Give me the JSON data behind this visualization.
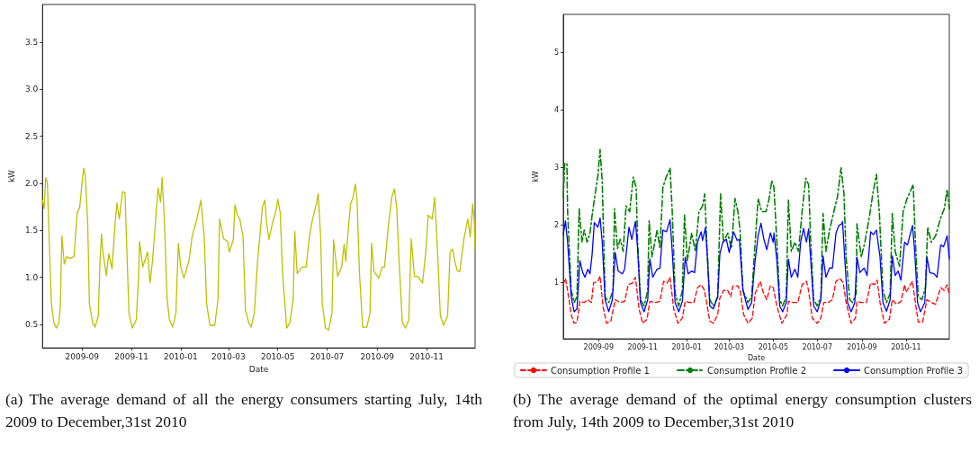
{
  "chart_data": [
    {
      "type": "line",
      "xlabel": "Date",
      "ylabel": "kW",
      "annotations": [
        "(a) The average demand of all the energy consumers starting July, 14th 2009 to December,31st 2010"
      ],
      "xlim": [
        "2009-07-14",
        "2010-12-31"
      ],
      "xticks": [
        "2009-09",
        "2009-11",
        "2010-01",
        "2010-03",
        "2010-05",
        "2010-07",
        "2010-09",
        "2010-11"
      ],
      "ylim": [
        0.25,
        3.9
      ],
      "yticks": [
        0.5,
        {
          "value": 1,
          "label": "1.0"
        },
        1.5,
        {
          "value": 2,
          "label": "2.0"
        },
        2.5,
        {
          "value": 3,
          "label": "3.0"
        },
        3.5
      ],
      "grid": false,
      "legend": false,
      "marker": "none",
      "series": [
        {
          "color": "#bfbf00",
          "line_style": "solid",
          "x": [
            "2009-07-14",
            "2009-07-16",
            "2009-07-18",
            "2009-07-20",
            "2009-07-22",
            "2009-07-25",
            "2009-07-28",
            "2009-07-31",
            "2009-08-03",
            "2009-08-05",
            "2009-08-07",
            "2009-08-10",
            "2009-08-13",
            "2009-08-17",
            "2009-08-22",
            "2009-08-26",
            "2009-08-29",
            "2009-09-01",
            "2009-09-03",
            "2009-09-05",
            "2009-09-08",
            "2009-09-10",
            "2009-09-14",
            "2009-09-17",
            "2009-09-21",
            "2009-09-23",
            "2009-09-25",
            "2009-09-27",
            "2009-10-01",
            "2009-10-04",
            "2009-10-08",
            "2009-10-12",
            "2009-10-14",
            "2009-10-17",
            "2009-10-21",
            "2009-10-24",
            "2009-10-27",
            "2009-10-29",
            "2009-11-02",
            "2009-11-07",
            "2009-11-10",
            "2009-11-11",
            "2009-11-15",
            "2009-11-21",
            "2009-11-24",
            "2009-11-27",
            "2009-12-01",
            "2009-12-04",
            "2009-12-07",
            "2009-12-09",
            "2009-12-12",
            "2009-12-15",
            "2009-12-18",
            "2009-12-22",
            "2009-12-26",
            "2009-12-29",
            "2010-01-01",
            "2010-01-05",
            "2010-01-11",
            "2010-01-15",
            "2010-01-20",
            "2010-01-26",
            "2010-01-30",
            "2010-02-02",
            "2010-02-06",
            "2010-02-12",
            "2010-02-16",
            "2010-02-18",
            "2010-02-23",
            "2010-02-28",
            "2010-03-02",
            "2010-03-07",
            "2010-03-09",
            "2010-03-12",
            "2010-03-15",
            "2010-03-19",
            "2010-03-22",
            "2010-03-26",
            "2010-03-29",
            "2010-04-02",
            "2010-04-06",
            "2010-04-09",
            "2010-04-12",
            "2010-04-15",
            "2010-04-17",
            "2010-04-20",
            "2010-04-24",
            "2010-04-29",
            "2010-05-01",
            "2010-05-04",
            "2010-05-07",
            "2010-05-12",
            "2010-05-16",
            "2010-05-20",
            "2010-05-22",
            "2010-05-25",
            "2010-05-31",
            "2010-06-05",
            "2010-06-09",
            "2010-06-13",
            "2010-06-18",
            "2010-06-20",
            "2010-06-23",
            "2010-06-25",
            "2010-06-29",
            "2010-07-03",
            "2010-07-07",
            "2010-07-09",
            "2010-07-14",
            "2010-07-19",
            "2010-07-22",
            "2010-07-24",
            "2010-07-27",
            "2010-07-30",
            "2010-08-02",
            "2010-08-05",
            "2010-08-07",
            "2010-08-10",
            "2010-08-14",
            "2010-08-19",
            "2010-08-23",
            "2010-08-25",
            "2010-08-28",
            "2010-09-03",
            "2010-09-07",
            "2010-09-10",
            "2010-09-15",
            "2010-09-19",
            "2010-09-22",
            "2010-09-25",
            "2010-09-28",
            "2010-10-02",
            "2010-10-06",
            "2010-10-10",
            "2010-10-13",
            "2010-10-17",
            "2010-10-21",
            "2010-10-27",
            "2010-10-31",
            "2010-11-03",
            "2010-11-08",
            "2010-11-11",
            "2010-11-15",
            "2010-11-18",
            "2010-11-22",
            "2010-11-27",
            "2010-11-30",
            "2010-12-03",
            "2010-12-06",
            "2010-12-09",
            "2010-12-12",
            "2010-12-17",
            "2010-12-22",
            "2010-12-25",
            "2010-12-28",
            "2010-12-30",
            "2010-12-31"
          ],
          "values": [
            1.82,
            1.73,
            2.06,
            2.01,
            1.49,
            0.72,
            0.52,
            0.46,
            0.51,
            0.68,
            1.44,
            1.14,
            1.22,
            1.2,
            1.22,
            1.69,
            1.74,
            2.01,
            2.16,
            2.08,
            1.56,
            0.72,
            0.52,
            0.47,
            0.59,
            1.14,
            1.46,
            1.25,
            1.02,
            1.25,
            1.09,
            1.59,
            1.79,
            1.62,
            1.91,
            1.9,
            1.11,
            0.62,
            0.46,
            0.55,
            1.04,
            1.38,
            1.11,
            1.27,
            0.94,
            1.17,
            1.62,
            1.95,
            1.8,
            2.06,
            1.56,
            0.78,
            0.55,
            0.47,
            0.62,
            1.36,
            1.11,
            0.99,
            1.17,
            1.43,
            1.59,
            1.82,
            1.43,
            0.72,
            0.49,
            0.49,
            0.76,
            1.62,
            1.41,
            1.38,
            1.27,
            1.4,
            1.77,
            1.66,
            1.62,
            1.43,
            0.65,
            0.52,
            0.47,
            0.62,
            1.17,
            1.46,
            1.75,
            1.82,
            1.59,
            1.4,
            1.56,
            1.72,
            1.83,
            1.69,
            1.04,
            0.46,
            0.52,
            0.76,
            1.49,
            1.04,
            1.11,
            1.11,
            1.43,
            1.62,
            1.79,
            1.89,
            1.43,
            0.72,
            0.46,
            0.44,
            0.62,
            1.4,
            1.01,
            1.11,
            1.35,
            1.17,
            1.49,
            1.78,
            1.85,
            1.99,
            1.82,
            1.04,
            0.47,
            0.47,
            0.62,
            1.36,
            1.06,
            0.99,
            1.11,
            1.11,
            1.57,
            1.85,
            1.94,
            1.75,
            1.17,
            0.52,
            0.46,
            0.55,
            1.41,
            1.01,
            1.01,
            0.94,
            1.27,
            1.66,
            1.62,
            1.85,
            1.2,
            0.59,
            0.49,
            0.59,
            1.27,
            1.3,
            1.17,
            1.07,
            1.06,
            1.4,
            1.62,
            1.43,
            1.78,
            1.59,
            1.3
          ]
        }
      ]
    },
    {
      "type": "line",
      "xlabel": "Date",
      "ylabel": "kW",
      "annotations": [
        "(b) The average demand of the optimal energy consumption clusters from July, 14th 2009 to December,31st 2010"
      ],
      "xlim": [
        "2009-07-14",
        "2010-12-31"
      ],
      "xticks": [
        "2009-09",
        "2009-11",
        "2010-01",
        "2010-03",
        "2010-05",
        "2010-07",
        "2010-09",
        "2010-11"
      ],
      "ylim": [
        0.02,
        5.66
      ],
      "yticks": [
        1,
        2,
        3,
        4,
        5
      ],
      "grid": false,
      "legend": "bottom",
      "marker": "none",
      "series": [
        {
          "name": "Consumption Profile 1",
          "color": "#ff0000",
          "line_style": "dashed",
          "x": [
            "2009-07-14",
            "2009-07-17",
            "2009-07-20",
            "2009-07-25",
            "2009-07-29",
            "2009-08-02",
            "2009-08-06",
            "2009-08-12",
            "2009-08-17",
            "2009-08-22",
            "2009-08-25",
            "2009-08-31",
            "2009-09-03",
            "2009-09-07",
            "2009-09-12",
            "2009-09-18",
            "2009-09-24",
            "2009-10-01",
            "2009-10-07",
            "2009-10-12",
            "2009-10-18",
            "2009-10-22",
            "2009-10-27",
            "2009-11-01",
            "2009-11-07",
            "2009-11-11",
            "2009-11-18",
            "2009-11-25",
            "2009-11-30",
            "2009-12-05",
            "2009-12-09",
            "2009-12-14",
            "2009-12-20",
            "2009-12-26",
            "2009-12-30",
            "2010-01-06",
            "2010-01-11",
            "2010-01-16",
            "2010-01-21",
            "2010-01-25",
            "2010-01-28",
            "2010-02-02",
            "2010-02-07",
            "2010-02-13",
            "2010-02-16",
            "2010-02-21",
            "2010-02-27",
            "2010-03-03",
            "2010-03-06",
            "2010-03-13",
            "2010-03-16",
            "2010-03-21",
            "2010-03-27",
            "2010-04-02",
            "2010-04-06",
            "2010-04-13",
            "2010-04-17",
            "2010-04-22",
            "2010-04-27",
            "2010-05-01",
            "2010-05-06",
            "2010-05-13",
            "2010-05-20",
            "2010-05-22",
            "2010-05-29",
            "2010-06-04",
            "2010-06-10",
            "2010-06-16",
            "2010-06-19",
            "2010-06-24",
            "2010-07-01",
            "2010-07-06",
            "2010-07-10",
            "2010-07-16",
            "2010-07-22",
            "2010-07-27",
            "2010-08-01",
            "2010-08-06",
            "2010-08-10",
            "2010-08-17",
            "2010-08-23",
            "2010-08-25",
            "2010-08-31",
            "2010-09-07",
            "2010-09-13",
            "2010-09-18",
            "2010-09-22",
            "2010-09-26",
            "2010-10-02",
            "2010-10-09",
            "2010-10-13",
            "2010-10-19",
            "2010-10-25",
            "2010-10-30",
            "2010-11-01",
            "2010-11-10",
            "2010-11-14",
            "2010-11-18",
            "2010-11-24",
            "2010-11-30",
            "2010-12-06",
            "2010-12-12",
            "2010-12-19",
            "2010-12-24",
            "2010-12-28",
            "2010-12-31"
          ],
          "values": [
            0.96,
            1.07,
            0.86,
            0.44,
            0.29,
            0.31,
            0.67,
            0.65,
            0.7,
            0.65,
            0.99,
            1.02,
            1.11,
            0.59,
            0.29,
            0.33,
            0.7,
            0.65,
            0.67,
            0.96,
            0.99,
            1.09,
            0.54,
            0.29,
            0.36,
            0.67,
            0.65,
            0.67,
            1.02,
            0.99,
            1.09,
            0.54,
            0.29,
            0.38,
            0.67,
            0.65,
            0.65,
            0.91,
            0.96,
            0.88,
            0.7,
            0.33,
            0.29,
            0.44,
            0.73,
            0.86,
            0.86,
            0.75,
            0.94,
            0.94,
            0.86,
            0.44,
            0.29,
            0.38,
            0.81,
            1.02,
            0.83,
            0.7,
            0.94,
            0.91,
            0.59,
            0.29,
            0.44,
            0.67,
            0.65,
            0.65,
            0.96,
            1.02,
            0.86,
            0.38,
            0.29,
            0.38,
            0.65,
            0.65,
            0.7,
            1.02,
            1.07,
            0.99,
            0.65,
            0.29,
            0.38,
            0.67,
            0.65,
            0.65,
            0.99,
            0.96,
            1.04,
            0.65,
            0.29,
            0.36,
            0.7,
            0.62,
            0.67,
            0.96,
            0.83,
            1.02,
            0.65,
            0.31,
            0.31,
            0.7,
            0.65,
            0.62,
            0.91,
            0.86,
            0.96,
            0.78
          ]
        },
        {
          "name": "Consumption Profile 2",
          "color": "#008000",
          "line_style": "dashdot",
          "x": [
            "2009-07-14",
            "2009-07-16",
            "2009-07-19",
            "2009-07-20",
            "2009-07-25",
            "2009-07-29",
            "2009-08-02",
            "2009-08-05",
            "2009-08-09",
            "2009-08-12",
            "2009-08-16",
            "2009-08-20",
            "2009-08-23",
            "2009-08-26",
            "2009-08-31",
            "2009-09-03",
            "2009-09-06",
            "2009-09-10",
            "2009-09-15",
            "2009-09-21",
            "2009-09-23",
            "2009-09-27",
            "2009-10-01",
            "2009-10-05",
            "2009-10-09",
            "2009-10-14",
            "2009-10-19",
            "2009-10-23",
            "2009-10-25",
            "2009-10-29",
            "2009-11-03",
            "2009-11-08",
            "2009-11-10",
            "2009-11-14",
            "2009-11-21",
            "2009-11-25",
            "2009-11-29",
            "2009-12-03",
            "2009-12-09",
            "2009-12-12",
            "2009-12-16",
            "2009-12-21",
            "2009-12-26",
            "2009-12-29",
            "2010-01-02",
            "2010-01-08",
            "2010-01-13",
            "2010-01-18",
            "2010-01-23",
            "2010-01-26",
            "2010-01-29",
            "2010-02-02",
            "2010-02-07",
            "2010-02-13",
            "2010-02-17",
            "2010-02-21",
            "2010-02-27",
            "2010-03-04",
            "2010-03-09",
            "2010-03-13",
            "2010-03-16",
            "2010-03-20",
            "2010-03-27",
            "2010-04-01",
            "2010-04-06",
            "2010-04-10",
            "2010-04-15",
            "2010-04-21",
            "2010-04-25",
            "2010-04-29",
            "2010-05-02",
            "2010-05-06",
            "2010-05-10",
            "2010-05-14",
            "2010-05-19",
            "2010-05-22",
            "2010-05-26",
            "2010-05-31",
            "2010-06-05",
            "2010-06-10",
            "2010-06-15",
            "2010-06-19",
            "2010-06-22",
            "2010-06-26",
            "2010-07-01",
            "2010-07-06",
            "2010-07-09",
            "2010-07-13",
            "2010-07-18",
            "2010-07-24",
            "2010-07-29",
            "2010-08-03",
            "2010-08-07",
            "2010-08-10",
            "2010-08-15",
            "2010-08-19",
            "2010-08-24",
            "2010-08-25",
            "2010-08-31",
            "2010-09-05",
            "2010-09-11",
            "2010-09-16",
            "2010-09-21",
            "2010-09-25",
            "2010-09-30",
            "2010-10-05",
            "2010-10-10",
            "2010-10-13",
            "2010-10-17",
            "2010-10-23",
            "2010-10-28",
            "2010-11-02",
            "2010-11-11",
            "2010-11-14",
            "2010-11-18",
            "2010-11-23",
            "2010-11-28",
            "2010-12-01",
            "2010-12-06",
            "2010-12-12",
            "2010-12-19",
            "2010-12-24",
            "2010-12-28",
            "2010-12-31"
          ],
          "values": [
            2.49,
            3.07,
            3.07,
            2.23,
            0.86,
            0.65,
            0.75,
            2.28,
            1.7,
            1.91,
            1.7,
            1.86,
            2.17,
            2.44,
            2.86,
            3.31,
            2.75,
            0.75,
            0.65,
            0.86,
            2.28,
            1.59,
            1.75,
            1.54,
            2.33,
            2.23,
            2.83,
            2.65,
            1.7,
            0.7,
            0.59,
            0.86,
            2.07,
            1.44,
            1.91,
            1.59,
            2.65,
            2.81,
            2.99,
            2.23,
            0.81,
            0.59,
            0.86,
            2.17,
            1.38,
            1.86,
            1.54,
            2.23,
            2.33,
            2.54,
            1.65,
            0.7,
            0.59,
            0.75,
            2.54,
            1.7,
            1.86,
            1.59,
            2.46,
            2.23,
            1.91,
            0.86,
            0.65,
            0.75,
            1.7,
            2.46,
            2.23,
            2.23,
            2.44,
            2.77,
            2.65,
            1.7,
            0.7,
            0.59,
            0.75,
            2.44,
            1.54,
            1.7,
            1.54,
            2.23,
            2.81,
            2.7,
            1.7,
            0.7,
            0.59,
            0.75,
            2.2,
            1.54,
            1.91,
            2.23,
            2.49,
            2.99,
            2.54,
            1.44,
            0.7,
            0.65,
            0.81,
            2.02,
            1.44,
            1.7,
            2.12,
            2.54,
            2.88,
            2.23,
            0.86,
            0.65,
            0.81,
            2.2,
            1.54,
            1.28,
            2.23,
            2.44,
            2.7,
            1.7,
            0.75,
            0.7,
            0.91,
            1.96,
            1.7,
            1.81,
            2.12,
            2.28,
            2.62,
            2.28
          ]
        },
        {
          "name": "Consumption Profile 3",
          "color": "#0000ff",
          "line_style": "solid",
          "x": [
            "2009-07-14",
            "2009-07-17",
            "2009-07-20",
            "2009-07-25",
            "2009-07-29",
            "2009-08-02",
            "2009-08-06",
            "2009-08-10",
            "2009-08-13",
            "2009-08-17",
            "2009-08-20",
            "2009-08-23",
            "2009-08-26",
            "2009-08-31",
            "2009-09-03",
            "2009-09-06",
            "2009-09-10",
            "2009-09-15",
            "2009-09-20",
            "2009-09-24",
            "2009-09-28",
            "2009-10-04",
            "2009-10-07",
            "2009-10-13",
            "2009-10-17",
            "2009-10-22",
            "2009-10-25",
            "2009-10-29",
            "2009-11-03",
            "2009-11-08",
            "2009-11-11",
            "2009-11-15",
            "2009-11-21",
            "2009-11-25",
            "2009-11-29",
            "2009-12-04",
            "2009-12-09",
            "2009-12-12",
            "2009-12-16",
            "2009-12-21",
            "2009-12-26",
            "2009-12-30",
            "2010-01-03",
            "2010-01-08",
            "2010-01-12",
            "2010-01-16",
            "2010-01-21",
            "2010-01-23",
            "2010-01-27",
            "2010-01-30",
            "2010-02-02",
            "2010-02-07",
            "2010-02-13",
            "2010-02-16",
            "2010-02-20",
            "2010-02-25",
            "2010-03-01",
            "2010-03-07",
            "2010-03-12",
            "2010-03-15",
            "2010-03-20",
            "2010-03-27",
            "2010-04-01",
            "2010-04-05",
            "2010-04-10",
            "2010-04-14",
            "2010-04-18",
            "2010-04-22",
            "2010-04-27",
            "2010-05-01",
            "2010-05-02",
            "2010-05-06",
            "2010-05-10",
            "2010-05-14",
            "2010-05-19",
            "2010-05-22",
            "2010-05-26",
            "2010-05-31",
            "2010-06-04",
            "2010-06-08",
            "2010-06-12",
            "2010-06-16",
            "2010-06-19",
            "2010-06-22",
            "2010-06-26",
            "2010-07-01",
            "2010-07-06",
            "2010-07-09",
            "2010-07-13",
            "2010-07-18",
            "2010-07-22",
            "2010-07-27",
            "2010-07-31",
            "2010-08-04",
            "2010-08-05",
            "2010-08-08",
            "2010-08-12",
            "2010-08-17",
            "2010-08-22",
            "2010-08-25",
            "2010-08-29",
            "2010-09-04",
            "2010-09-08",
            "2010-09-13",
            "2010-09-17",
            "2010-09-21",
            "2010-09-26",
            "2010-09-30",
            "2010-10-05",
            "2010-10-10",
            "2010-10-13",
            "2010-10-17",
            "2010-10-21",
            "2010-10-25",
            "2010-10-30",
            "2010-11-03",
            "2010-11-10",
            "2010-11-13",
            "2010-11-17",
            "2010-11-21",
            "2010-11-27",
            "2010-11-30",
            "2010-12-04",
            "2010-12-10",
            "2010-12-14",
            "2010-12-19",
            "2010-12-23",
            "2010-12-28",
            "2010-12-31"
          ],
          "values": [
            1.83,
            2.07,
            1.7,
            0.75,
            0.49,
            0.54,
            1.38,
            1.17,
            1.09,
            1.23,
            1.15,
            1.49,
            2.04,
            1.96,
            2.12,
            1.7,
            0.7,
            0.49,
            0.7,
            1.52,
            1.2,
            1.15,
            1.23,
            1.96,
            1.75,
            2.06,
            1.59,
            0.65,
            0.49,
            0.7,
            1.41,
            1.09,
            1.23,
            1.25,
            1.91,
            1.88,
            2.09,
            1.54,
            0.65,
            0.49,
            0.67,
            1.44,
            1.15,
            1.2,
            1.17,
            1.7,
            1.88,
            1.73,
            1.95,
            1.38,
            0.59,
            0.54,
            0.75,
            1.49,
            1.7,
            1.75,
            1.52,
            1.88,
            1.73,
            1.75,
            0.86,
            0.53,
            0.65,
            1.28,
            1.81,
            2.03,
            1.75,
            1.57,
            1.86,
            1.7,
            1.86,
            1.38,
            0.59,
            0.49,
            0.65,
            1.41,
            1.09,
            1.23,
            1.09,
            1.7,
            1.94,
            1.7,
            1.93,
            1.38,
            0.59,
            0.49,
            0.7,
            1.46,
            1.09,
            1.25,
            1.25,
            1.86,
            1.99,
            2.02,
            2.06,
            1.44,
            0.65,
            0.49,
            0.65,
            1.44,
            1.17,
            1.25,
            1.12,
            1.88,
            1.83,
            1.91,
            1.44,
            0.65,
            0.5,
            0.7,
            1.46,
            1.12,
            1.2,
            1.04,
            1.7,
            1.65,
            1.99,
            1.54,
            0.65,
            0.49,
            0.65,
            1.44,
            1.17,
            1.15,
            1.09,
            1.65,
            1.62,
            1.81,
            1.41
          ]
        }
      ]
    }
  ]
}
